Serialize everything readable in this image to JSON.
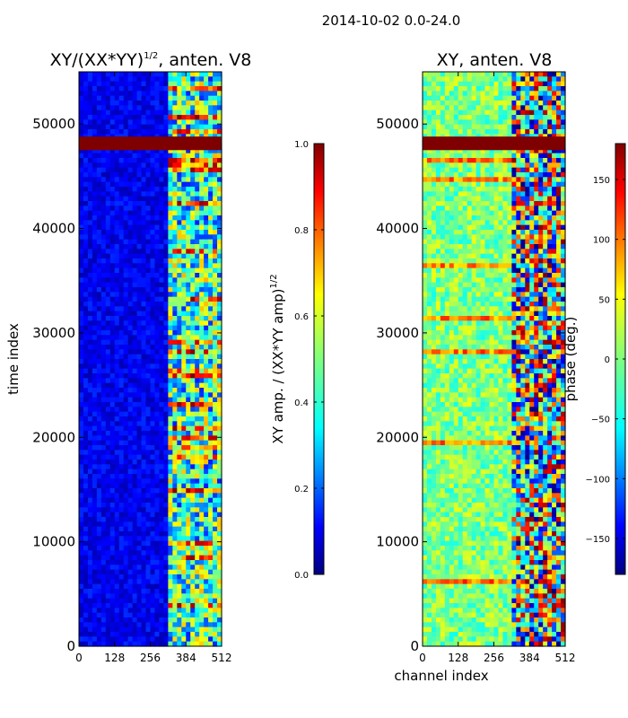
{
  "suptitle": "2014-10-02 0.0-24.0",
  "colors": {
    "saturated_band": "#7f0000",
    "jet": [
      "#00007f",
      "#0000ff",
      "#007fff",
      "#00ffff",
      "#7fff7f",
      "#ffff00",
      "#ff7f00",
      "#ff0000",
      "#7f0000"
    ]
  },
  "chart_data": [
    {
      "type": "heatmap",
      "title_main": "XY/(XX*YY)",
      "title_sup": "1/2",
      "title_tail": ", anten. V8",
      "xlabel": "",
      "ylabel": "time index",
      "xlim": [
        0,
        512
      ],
      "ylim": [
        0,
        55000
      ],
      "xticks": [
        0,
        128,
        256,
        384,
        512
      ],
      "xtick_labels": [
        "0",
        "128",
        "256",
        "384",
        "512"
      ],
      "yticks": [
        0,
        10000,
        20000,
        30000,
        40000,
        50000
      ],
      "ytick_labels": [
        "0",
        "10000",
        "20000",
        "30000",
        "40000",
        "50000"
      ],
      "bright_channel_range": [
        325,
        512
      ],
      "saturated_time_range": [
        47500,
        48800
      ],
      "colorbar": {
        "label_main": "XY amp. / (XX*YY amp)",
        "label_sup": "1/2",
        "range": [
          0.0,
          1.0
        ],
        "ticks": [
          0.0,
          0.2,
          0.4,
          0.6,
          0.8,
          1.0
        ],
        "tick_labels": [
          "0.0",
          "0.2",
          "0.4",
          "0.6",
          "0.8",
          "1.0"
        ]
      }
    },
    {
      "type": "heatmap",
      "title": "XY, anten. V8",
      "xlabel": "channel index",
      "ylabel": "",
      "xlim": [
        0,
        512
      ],
      "ylim": [
        0,
        55000
      ],
      "xticks": [
        0,
        128,
        256,
        384,
        512
      ],
      "xtick_labels": [
        "0",
        "128",
        "256",
        "384",
        "512"
      ],
      "yticks": [
        0,
        10000,
        20000,
        30000,
        40000,
        50000
      ],
      "ytick_labels": [
        "0",
        "10000",
        "20000",
        "30000",
        "40000",
        "50000"
      ],
      "bright_channel_range": [
        325,
        512
      ],
      "saturated_time_range": [
        47500,
        48800
      ],
      "colorbar": {
        "label": "phase (deg.)",
        "range": [
          -180,
          180
        ],
        "ticks": [
          -150,
          -100,
          -50,
          0,
          50,
          100,
          150
        ],
        "tick_labels": [
          "−150",
          "−100",
          "−50",
          "0",
          "50",
          "100",
          "150"
        ]
      }
    }
  ]
}
